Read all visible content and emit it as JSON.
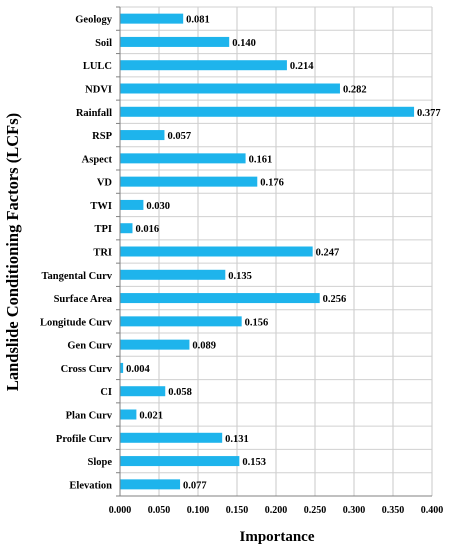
{
  "chart_data": {
    "type": "bar",
    "orientation": "horizontal",
    "xlabel": "Importance",
    "ylabel": "Landslide Conditioning Factors (LCFs)",
    "xlim": [
      0,
      0.4
    ],
    "xticks": [
      "0.000",
      "0.050",
      "0.100",
      "0.150",
      "0.200",
      "0.250",
      "0.300",
      "0.350",
      "0.400"
    ],
    "grid": true,
    "bar_color": "#1EB4EC",
    "categories": [
      "Geology",
      "Soil",
      "LULC",
      "NDVI",
      "Rainfall",
      "RSP",
      "Aspect",
      "VD",
      "TWI",
      "TPI",
      "TRI",
      "Tangental Curv",
      "Surface Area",
      "Longitude Curv",
      "Gen Curv",
      "Cross Curv",
      "CI",
      "Plan Curv",
      "Profile Curv",
      "Slope",
      "Elevation"
    ],
    "values": [
      0.081,
      0.14,
      0.214,
      0.282,
      0.377,
      0.057,
      0.161,
      0.176,
      0.03,
      0.016,
      0.247,
      0.135,
      0.256,
      0.156,
      0.089,
      0.004,
      0.058,
      0.021,
      0.131,
      0.153,
      0.077
    ],
    "value_labels": [
      "0.081",
      "0.140",
      "0.214",
      "0.282",
      "0.377",
      "0.057",
      "0.161",
      "0.176",
      "0.030",
      "0.016",
      "0.247",
      "0.135",
      "0.256",
      "0.156",
      "0.089",
      "0.004",
      "0.058",
      "0.021",
      "0.131",
      "0.153",
      "0.077"
    ]
  }
}
